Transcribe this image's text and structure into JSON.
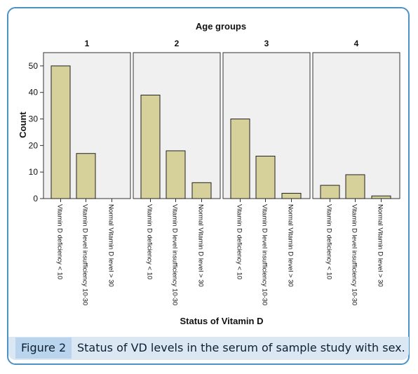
{
  "figure": {
    "label": "Figure 2",
    "caption": "Status of VD levels in the serum of sample study with sex."
  },
  "colors": {
    "bar_fill": "#d6d09a",
    "panel_fill": "#f0f0f0",
    "frame": "#4a93c9",
    "caption_bg": "#dbe8f4",
    "label_bg": "#b9d4ec"
  },
  "chart_data": {
    "type": "bar",
    "title": "Age groups",
    "xlabel": "Status of Vitamin D",
    "ylabel": "Count",
    "ylim": [
      0,
      55
    ],
    "yticks": [
      0,
      10,
      20,
      30,
      40,
      50
    ],
    "grid": false,
    "categories": [
      "Vitamin D  deficiency < 10",
      "Vitamin D level insufficiency 10-30",
      "Normal Vitamin D level > 30"
    ],
    "panels": [
      {
        "name": "1",
        "values": [
          50,
          17,
          0
        ]
      },
      {
        "name": "2",
        "values": [
          39,
          18,
          6
        ]
      },
      {
        "name": "3",
        "values": [
          30,
          16,
          2
        ]
      },
      {
        "name": "4",
        "values": [
          5,
          9,
          1
        ]
      }
    ]
  }
}
